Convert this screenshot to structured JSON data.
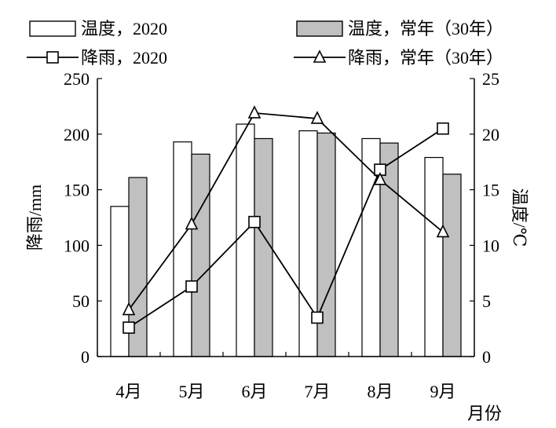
{
  "chart_data": {
    "type": "bar+line",
    "categories": [
      "4月",
      "5月",
      "6月",
      "7月",
      "8月",
      "9月"
    ],
    "xlabel": "月份",
    "y_left": {
      "label": "降雨/mm",
      "range": [
        0,
        250
      ],
      "ticks": [
        0,
        50,
        100,
        150,
        200,
        250
      ]
    },
    "y_right": {
      "label": "温度/℃",
      "range": [
        0,
        25
      ],
      "ticks": [
        0,
        5,
        10,
        15,
        20,
        25
      ]
    },
    "bar_series": [
      {
        "name": "温度，2020",
        "axis": "right",
        "fill": "#ffffff",
        "values": [
          13.5,
          19.3,
          20.9,
          20.3,
          19.6,
          17.9
        ]
      },
      {
        "name": "温度，常年（30年）",
        "axis": "right",
        "fill": "#c0c0c0",
        "values": [
          16.1,
          18.2,
          19.6,
          20.1,
          19.2,
          16.4
        ]
      }
    ],
    "line_series": [
      {
        "name": "降雨，2020",
        "axis": "left",
        "marker": "square",
        "values": [
          26,
          63,
          121,
          35,
          168,
          205
        ]
      },
      {
        "name": "降雨，常年（30年）",
        "axis": "left",
        "marker": "triangle",
        "values": [
          42,
          119,
          219,
          214,
          159,
          112
        ]
      }
    ],
    "legend_position": "top",
    "grid": false
  }
}
